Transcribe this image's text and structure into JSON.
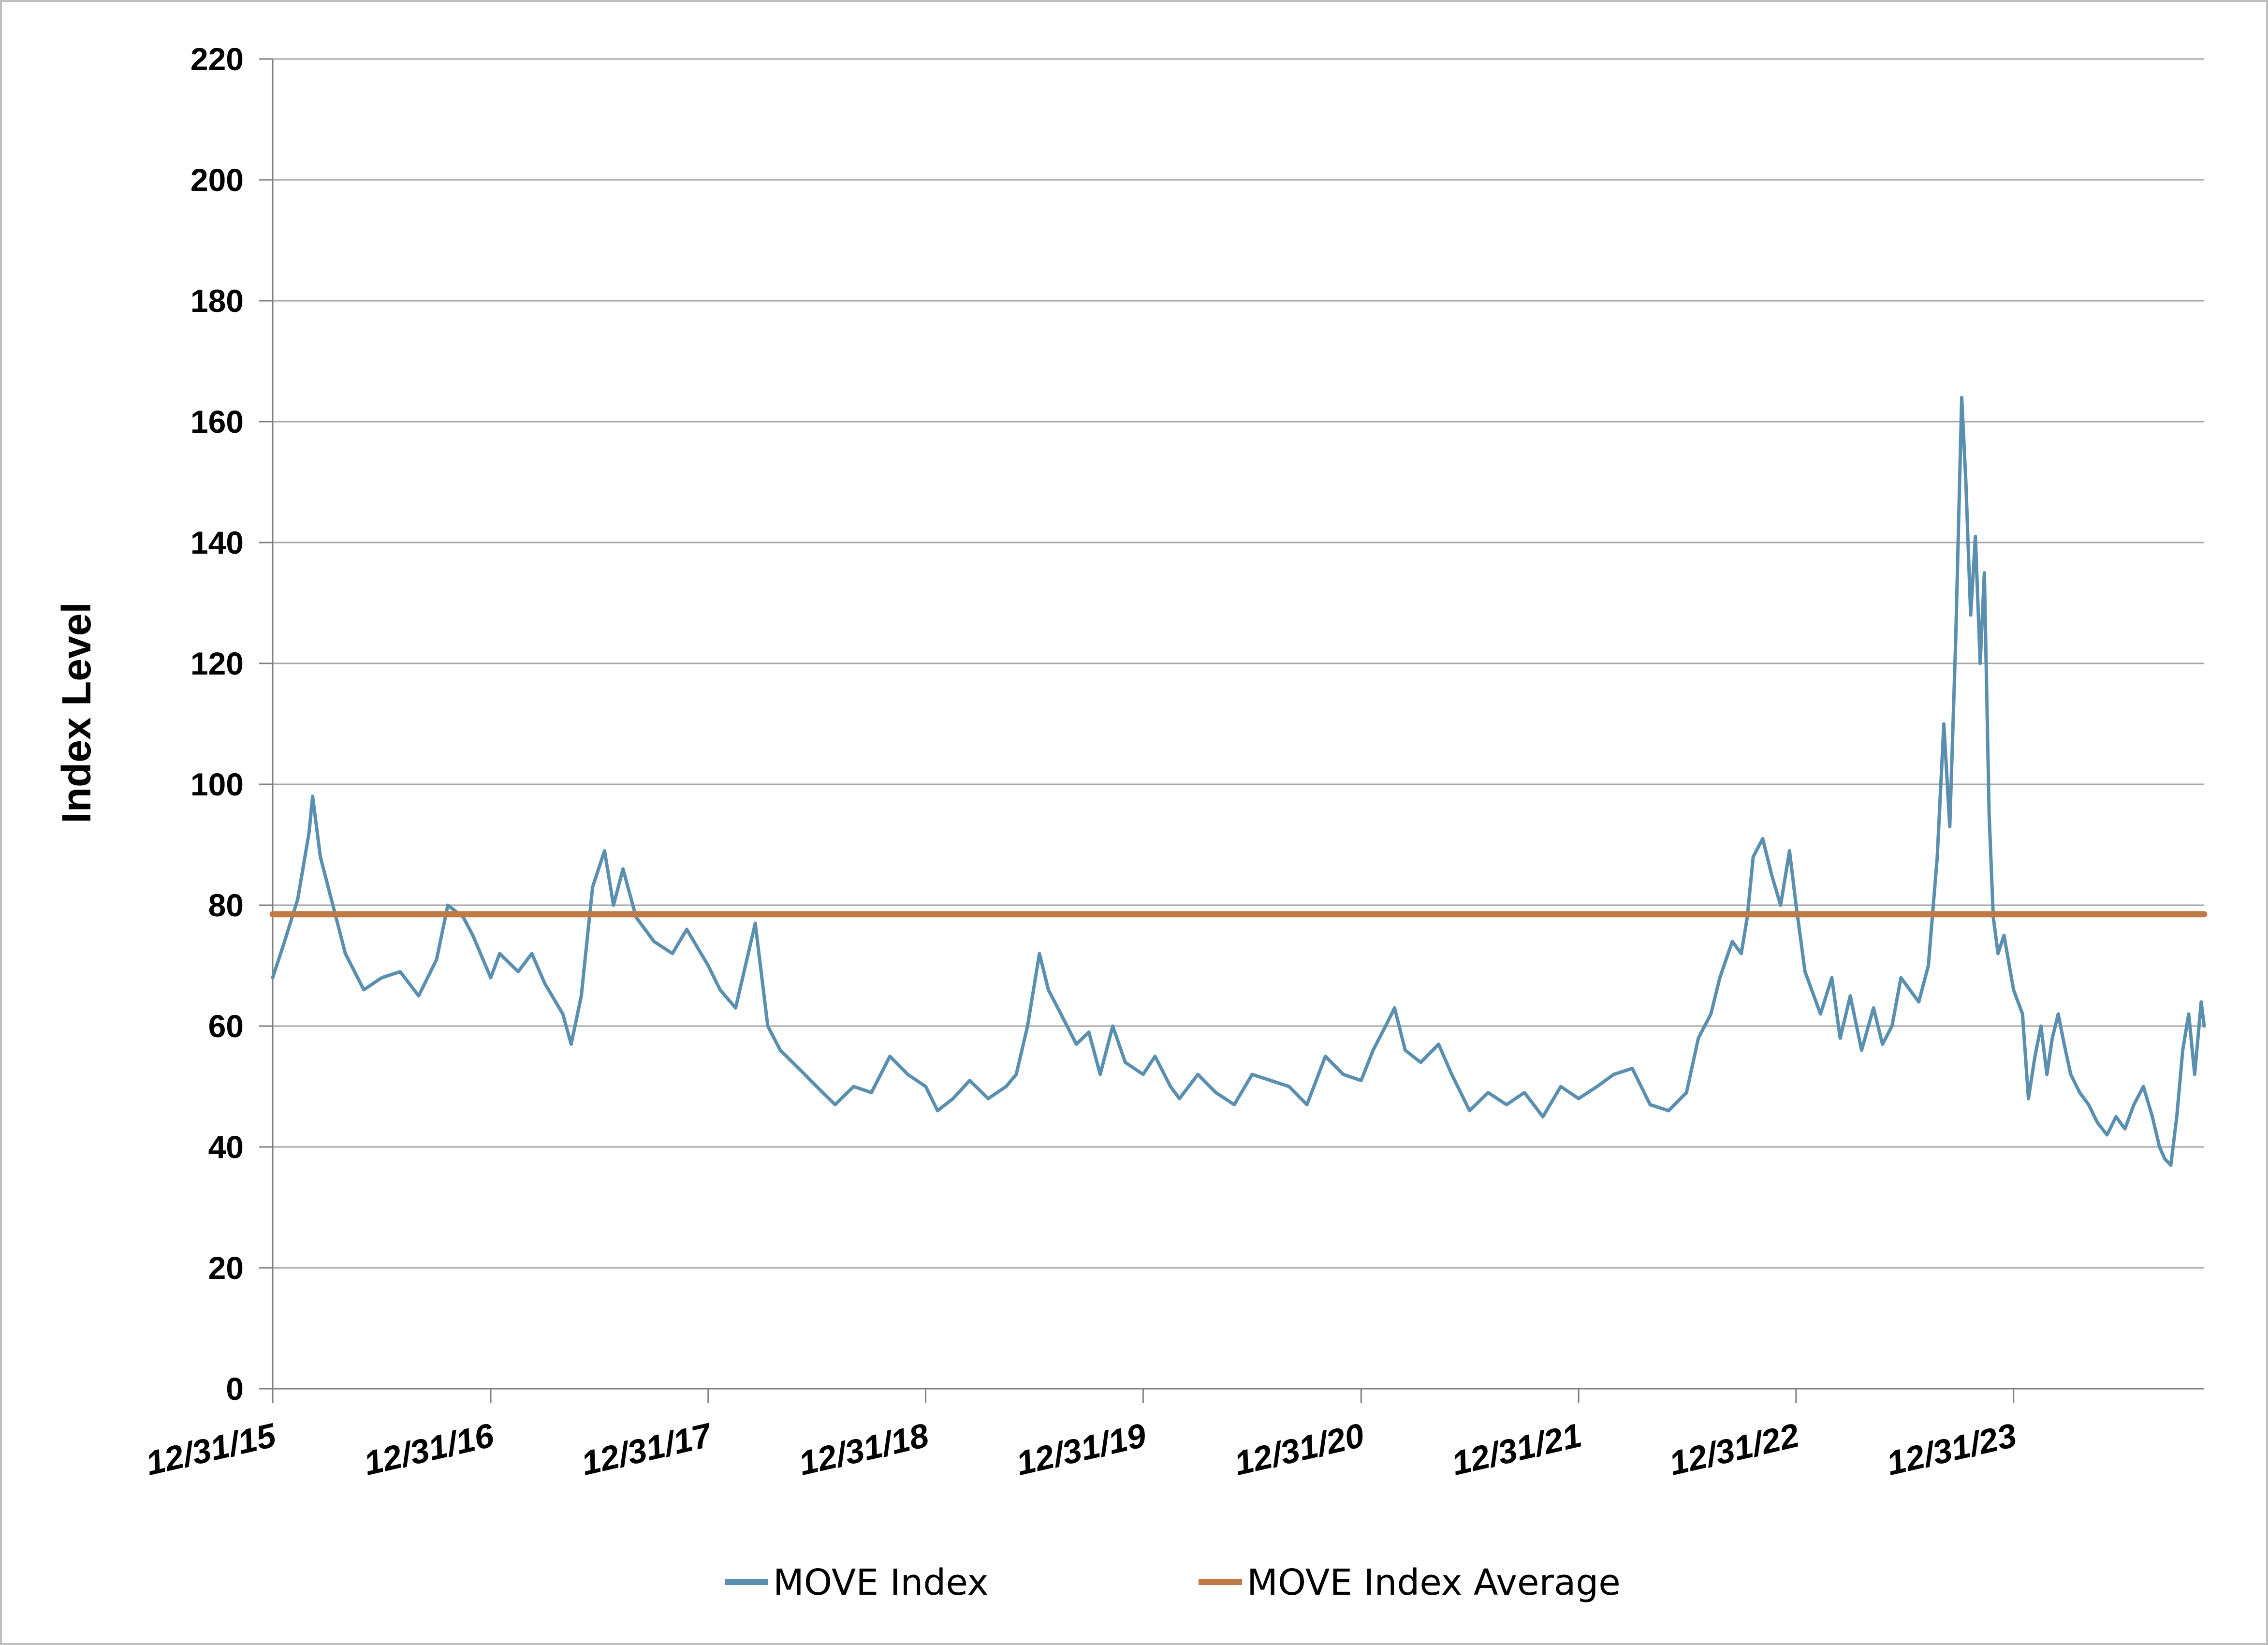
{
  "chart_data": {
    "type": "line",
    "title": "",
    "xlabel": "",
    "ylabel": "Index Level",
    "ylim": [
      0,
      220
    ],
    "yticks": [
      0,
      20,
      40,
      60,
      80,
      100,
      120,
      140,
      160,
      180,
      200,
      220
    ],
    "xlim": [
      "2015-12-31",
      "2024-11-15"
    ],
    "xtick_labels": [
      "12/31/15",
      "12/31/16",
      "12/31/17",
      "12/31/18",
      "12/31/19",
      "12/31/20",
      "12/31/21",
      "12/31/22",
      "12/31/23"
    ],
    "xtick_dates": [
      "2015-12-31",
      "2016-12-31",
      "2017-12-31",
      "2018-12-31",
      "2019-12-31",
      "2020-12-31",
      "2021-12-31",
      "2022-12-31",
      "2023-12-31"
    ],
    "grid": "horizontal",
    "legend_position": "bottom",
    "series": [
      {
        "name": "MOVE Index",
        "color": "#5b8fb0",
        "points": [
          [
            "2015-12-31",
            68
          ],
          [
            "2016-01-20",
            74
          ],
          [
            "2016-02-11",
            81
          ],
          [
            "2016-03-01",
            92
          ],
          [
            "2016-03-07",
            98
          ],
          [
            "2016-03-20",
            88
          ],
          [
            "2016-04-10",
            80
          ],
          [
            "2016-05-01",
            72
          ],
          [
            "2016-06-01",
            66
          ],
          [
            "2016-07-01",
            68
          ],
          [
            "2016-08-01",
            69
          ],
          [
            "2016-09-01",
            65
          ],
          [
            "2016-10-01",
            71
          ],
          [
            "2016-10-20",
            80
          ],
          [
            "2016-11-15",
            78
          ],
          [
            "2016-12-01",
            75
          ],
          [
            "2016-12-31",
            68
          ],
          [
            "2017-01-15",
            72
          ],
          [
            "2017-02-15",
            69
          ],
          [
            "2017-03-10",
            72
          ],
          [
            "2017-04-01",
            67
          ],
          [
            "2017-05-01",
            62
          ],
          [
            "2017-05-15",
            57
          ],
          [
            "2017-06-01",
            65
          ],
          [
            "2017-06-20",
            83
          ],
          [
            "2017-07-10",
            89
          ],
          [
            "2017-07-25",
            80
          ],
          [
            "2017-08-10",
            86
          ],
          [
            "2017-09-01",
            78
          ],
          [
            "2017-10-01",
            74
          ],
          [
            "2017-11-01",
            72
          ],
          [
            "2017-11-25",
            76
          ],
          [
            "2017-12-31",
            70
          ],
          [
            "2018-01-20",
            66
          ],
          [
            "2018-02-15",
            63
          ],
          [
            "2018-03-20",
            77
          ],
          [
            "2018-04-10",
            60
          ],
          [
            "2018-05-01",
            56
          ],
          [
            "2018-06-01",
            53
          ],
          [
            "2018-07-01",
            50
          ],
          [
            "2018-08-01",
            47
          ],
          [
            "2018-09-01",
            50
          ],
          [
            "2018-10-01",
            49
          ],
          [
            "2018-11-01",
            55
          ],
          [
            "2018-12-01",
            52
          ],
          [
            "2018-12-31",
            50
          ],
          [
            "2019-01-20",
            46
          ],
          [
            "2019-02-15",
            48
          ],
          [
            "2019-03-15",
            51
          ],
          [
            "2019-04-15",
            48
          ],
          [
            "2019-05-15",
            50
          ],
          [
            "2019-06-01",
            52
          ],
          [
            "2019-06-20",
            60
          ],
          [
            "2019-07-10",
            72
          ],
          [
            "2019-07-25",
            66
          ],
          [
            "2019-08-15",
            62
          ],
          [
            "2019-09-10",
            57
          ],
          [
            "2019-10-01",
            59
          ],
          [
            "2019-10-20",
            52
          ],
          [
            "2019-11-10",
            60
          ],
          [
            "2019-12-01",
            54
          ],
          [
            "2019-12-31",
            52
          ],
          [
            "2020-01-20",
            55
          ],
          [
            "2020-02-15",
            50
          ],
          [
            "2020-03-01",
            48
          ],
          [
            "2020-04-01",
            52
          ],
          [
            "2020-05-01",
            49
          ],
          [
            "2020-06-01",
            47
          ],
          [
            "2020-07-01",
            52
          ],
          [
            "2020-08-01",
            51
          ],
          [
            "2020-09-01",
            50
          ],
          [
            "2020-10-01",
            47
          ],
          [
            "2020-11-01",
            55
          ],
          [
            "2020-12-01",
            52
          ],
          [
            "2020-12-31",
            51
          ],
          [
            "2021-01-20",
            56
          ],
          [
            "2021-02-10",
            60
          ],
          [
            "2021-02-25",
            63
          ],
          [
            "2021-03-15",
            56
          ],
          [
            "2021-04-10",
            54
          ],
          [
            "2021-05-10",
            57
          ],
          [
            "2021-06-01",
            52
          ],
          [
            "2021-07-01",
            46
          ],
          [
            "2021-08-01",
            49
          ],
          [
            "2021-09-01",
            47
          ],
          [
            "2021-10-01",
            49
          ],
          [
            "2021-11-01",
            45
          ],
          [
            "2021-12-01",
            50
          ],
          [
            "2021-12-31",
            48
          ],
          [
            "2022-01-31",
            50
          ],
          [
            "2022-02-28",
            52
          ],
          [
            "2022-03-31",
            53
          ],
          [
            "2022-04-30",
            47
          ],
          [
            "2022-05-31",
            46
          ],
          [
            "2022-06-30",
            49
          ],
          [
            "2022-07-20",
            58
          ],
          [
            "2022-08-10",
            62
          ],
          [
            "2022-08-25",
            68
          ],
          [
            "2022-09-15",
            74
          ],
          [
            "2022-09-30",
            72
          ],
          [
            "2022-10-10",
            78
          ],
          [
            "2022-10-20",
            88
          ],
          [
            "2022-11-05",
            91
          ],
          [
            "2022-11-20",
            85
          ],
          [
            "2022-12-05",
            80
          ],
          [
            "2022-12-20",
            89
          ],
          [
            "2022-12-31",
            80
          ],
          [
            "2023-01-15",
            69
          ],
          [
            "2023-02-10",
            62
          ],
          [
            "2023-03-01",
            68
          ],
          [
            "2023-03-15",
            58
          ],
          [
            "2023-04-01",
            65
          ],
          [
            "2023-04-20",
            56
          ],
          [
            "2023-05-10",
            63
          ],
          [
            "2023-05-25",
            57
          ],
          [
            "2023-06-10",
            60
          ],
          [
            "2023-06-25",
            68
          ],
          [
            "2023-07-10",
            66
          ],
          [
            "2023-07-25",
            64
          ],
          [
            "2023-08-10",
            70
          ],
          [
            "2023-08-25",
            88
          ],
          [
            "2023-09-05",
            110
          ],
          [
            "2023-09-15",
            93
          ],
          [
            "2023-09-25",
            124
          ],
          [
            "2023-10-05",
            164
          ],
          [
            "2023-10-12",
            150
          ],
          [
            "2023-10-20",
            128
          ],
          [
            "2023-10-28",
            141
          ],
          [
            "2023-11-05",
            120
          ],
          [
            "2023-11-12",
            135
          ],
          [
            "2023-11-20",
            95
          ],
          [
            "2023-11-27",
            78
          ],
          [
            "2023-12-05",
            72
          ],
          [
            "2023-12-15",
            75
          ],
          [
            "2023-12-31",
            66
          ],
          [
            "2024-01-15",
            62
          ],
          [
            "2024-01-25",
            48
          ],
          [
            "2024-02-05",
            55
          ],
          [
            "2024-02-15",
            60
          ],
          [
            "2024-02-25",
            52
          ],
          [
            "2024-03-05",
            58
          ],
          [
            "2024-03-15",
            62
          ],
          [
            "2024-03-25",
            57
          ],
          [
            "2024-04-05",
            52
          ],
          [
            "2024-04-20",
            49
          ],
          [
            "2024-05-05",
            47
          ],
          [
            "2024-05-20",
            44
          ],
          [
            "2024-06-05",
            42
          ],
          [
            "2024-06-20",
            45
          ],
          [
            "2024-07-05",
            43
          ],
          [
            "2024-07-20",
            47
          ],
          [
            "2024-08-05",
            50
          ],
          [
            "2024-08-20",
            45
          ],
          [
            "2024-09-01",
            40
          ],
          [
            "2024-09-10",
            38
          ],
          [
            "2024-09-20",
            37
          ],
          [
            "2024-09-30",
            45
          ],
          [
            "2024-10-10",
            56
          ],
          [
            "2024-10-20",
            62
          ],
          [
            "2024-10-30",
            52
          ],
          [
            "2024-11-10",
            64
          ],
          [
            "2024-11-15",
            60
          ]
        ]
      },
      {
        "name": "MOVE Index Average",
        "color": "#c07a45",
        "points": [
          [
            "2015-12-31",
            78.5
          ],
          [
            "2024-11-15",
            78.5
          ]
        ]
      }
    ]
  },
  "legend": {
    "items": [
      {
        "label": "MOVE Index",
        "color": "#5b8fb0"
      },
      {
        "label": "MOVE Index Average",
        "color": "#c07a45"
      }
    ]
  }
}
